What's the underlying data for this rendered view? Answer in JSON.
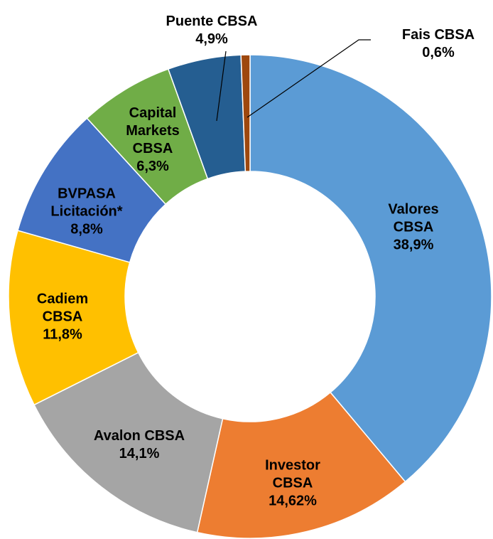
{
  "chart_data": {
    "type": "donut",
    "categories": [
      "Valores CBSA",
      "Investor CBSA",
      "Avalon CBSA",
      "Cadiem CBSA",
      "BVPASA Licitación*",
      "Capital Markets CBSA",
      "Puente CBSA",
      "Fais CBSA"
    ],
    "values": [
      38.9,
      14.62,
      14.1,
      11.8,
      8.8,
      6.3,
      4.9,
      0.6
    ],
    "value_labels": [
      "38,9%",
      "14,62%",
      "14,1%",
      "11,8%",
      "8,8%",
      "6,3%",
      "4,9%",
      "0,6%"
    ],
    "colors": [
      "#5b9bd5",
      "#ed7d31",
      "#a5a5a5",
      "#ffc000",
      "#4472c4",
      "#70ad47",
      "#255e91",
      "#9e480e"
    ]
  }
}
